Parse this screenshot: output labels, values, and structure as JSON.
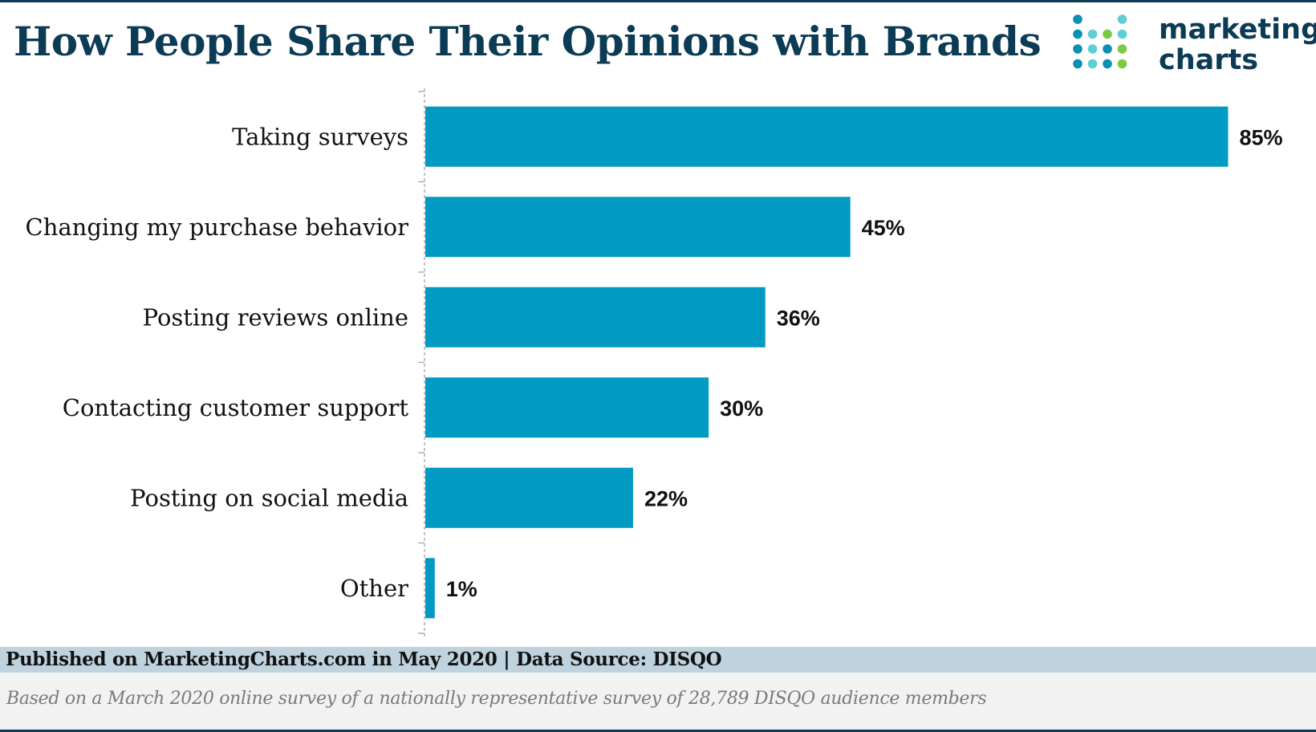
{
  "header": {
    "title": "How People Share Their Opinions with Brands"
  },
  "logo": {
    "line1": "marketing",
    "line2": "charts",
    "dot_colors": [
      "#0b8fb3",
      "#5ccfd6",
      "#7cc943"
    ]
  },
  "chart_data": {
    "type": "bar",
    "orientation": "horizontal",
    "categories": [
      "Taking surveys",
      "Changing my purchase behavior",
      "Posting reviews online",
      "Contacting customer support",
      "Posting on social media",
      "Other"
    ],
    "values": [
      85,
      45,
      36,
      30,
      22,
      1
    ],
    "value_labels": [
      "85%",
      "45%",
      "36%",
      "30%",
      "22%",
      "1%"
    ],
    "xlim": [
      0,
      100
    ],
    "grid": false,
    "bar_color": "#019ac2"
  },
  "footer": {
    "published": "Published on MarketingCharts.com in May 2020 | Data Source: DISQO",
    "note": "Based on a March 2020 online survey of a nationally representative survey of 28,789 DISQO audience members"
  }
}
